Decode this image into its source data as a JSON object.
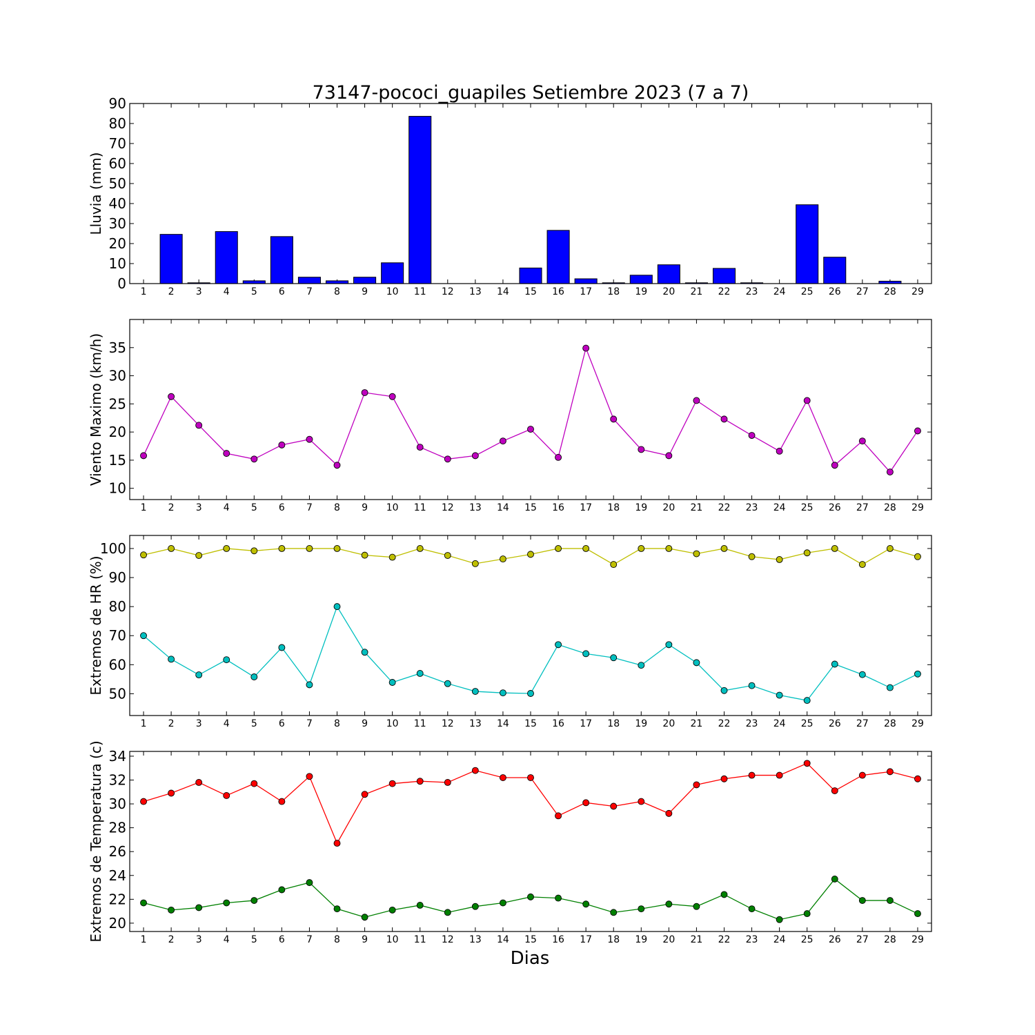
{
  "title": "73147-pococi_guapiles Setiembre 2023  (7 a 7)",
  "xlabel": "Dias",
  "chart_data": [
    {
      "type": "bar",
      "ylabel": "Lluvia (mm)",
      "x": [
        1,
        2,
        3,
        4,
        5,
        6,
        7,
        8,
        9,
        10,
        11,
        12,
        13,
        14,
        15,
        16,
        17,
        18,
        19,
        20,
        21,
        22,
        23,
        24,
        25,
        26,
        27,
        28,
        29
      ],
      "xlim": [
        0.5,
        29.5
      ],
      "ylim": [
        0,
        90
      ],
      "yticks": [
        0,
        10,
        20,
        30,
        40,
        50,
        60,
        70,
        80,
        90
      ],
      "series": [
        {
          "color": "#0000ff",
          "values": [
            0.0,
            24.6,
            0.4,
            26.0,
            1.4,
            23.5,
            3.2,
            1.4,
            3.2,
            10.4,
            83.6,
            0.0,
            0.0,
            0.0,
            7.8,
            26.6,
            2.4,
            0.4,
            4.2,
            9.4,
            0.4,
            7.6,
            0.4,
            0.0,
            39.4,
            13.2,
            0.0,
            1.2,
            0.0
          ]
        }
      ]
    },
    {
      "type": "line",
      "ylabel": "Viento Maximo (km/h)",
      "x": [
        1,
        2,
        3,
        4,
        5,
        6,
        7,
        8,
        9,
        10,
        11,
        12,
        13,
        14,
        15,
        16,
        17,
        18,
        19,
        20,
        21,
        22,
        23,
        24,
        25,
        26,
        27,
        28,
        29
      ],
      "xlim": [
        0.5,
        29.5
      ],
      "ylim": [
        8,
        40
      ],
      "yticks": [
        10,
        15,
        20,
        25,
        30,
        35
      ],
      "series": [
        {
          "color": "#bf00bf",
          "values": [
            15.8,
            26.3,
            21.2,
            16.2,
            15.2,
            17.7,
            18.7,
            14.1,
            27.0,
            26.3,
            17.3,
            15.2,
            15.8,
            18.4,
            20.5,
            15.5,
            34.9,
            22.3,
            16.9,
            15.8,
            25.6,
            22.3,
            19.4,
            16.6,
            25.6,
            14.1,
            18.4,
            12.9,
            20.2
          ]
        }
      ]
    },
    {
      "type": "line",
      "ylabel": "Extremos de HR (%)",
      "x": [
        1,
        2,
        3,
        4,
        5,
        6,
        7,
        8,
        9,
        10,
        11,
        12,
        13,
        14,
        15,
        16,
        17,
        18,
        19,
        20,
        21,
        22,
        23,
        24,
        25,
        26,
        27,
        28,
        29
      ],
      "xlim": [
        0.5,
        29.5
      ],
      "ylim": [
        42.5,
        104.5
      ],
      "yticks": [
        50,
        60,
        70,
        80,
        90,
        100
      ],
      "series": [
        {
          "color": "#bfbf00",
          "values": [
            97.8,
            100,
            97.6,
            100,
            99.2,
            100,
            100,
            100,
            97.7,
            97.0,
            100,
            97.6,
            94.8,
            96.4,
            98.0,
            100,
            100,
            94.5,
            100,
            100,
            98.2,
            100,
            97.2,
            96.2,
            98.5,
            100,
            94.5,
            100,
            97.2
          ]
        },
        {
          "color": "#00bfbf",
          "values": [
            70,
            61.9,
            56.5,
            61.7,
            55.8,
            65.9,
            53.1,
            80,
            64.3,
            53.9,
            57,
            53.5,
            50.8,
            50.3,
            50.1,
            66.9,
            63.8,
            62.4,
            59.8,
            66.9,
            60.7,
            51.1,
            52.8,
            49.5,
            47.7,
            60.2,
            56.6,
            52.1,
            56.8
          ]
        }
      ]
    },
    {
      "type": "line",
      "ylabel": "Extremos de Temperatura (c)",
      "x": [
        1,
        2,
        3,
        4,
        5,
        6,
        7,
        8,
        9,
        10,
        11,
        12,
        13,
        14,
        15,
        16,
        17,
        18,
        19,
        20,
        21,
        22,
        23,
        24,
        25,
        26,
        27,
        28,
        29
      ],
      "xlim": [
        0.5,
        29.5
      ],
      "ylim": [
        19.3,
        34.4
      ],
      "yticks": [
        20,
        22,
        24,
        26,
        28,
        30,
        32,
        34
      ],
      "series": [
        {
          "color": "#ff0000",
          "values": [
            30.2,
            30.9,
            31.8,
            30.7,
            31.7,
            30.2,
            32.3,
            26.7,
            30.8,
            31.7,
            31.9,
            31.8,
            32.8,
            32.2,
            32.2,
            29.0,
            30.1,
            29.8,
            30.2,
            29.2,
            31.6,
            32.1,
            32.4,
            32.4,
            33.4,
            31.1,
            32.4,
            32.7,
            32.1
          ]
        },
        {
          "color": "#008000",
          "values": [
            21.7,
            21.1,
            21.3,
            21.7,
            21.9,
            22.8,
            23.4,
            21.2,
            20.5,
            21.1,
            21.5,
            20.9,
            21.4,
            21.7,
            22.2,
            22.1,
            21.6,
            20.9,
            21.2,
            21.6,
            21.4,
            22.4,
            21.2,
            20.3,
            20.8,
            23.7,
            21.9,
            21.9,
            20.8
          ]
        }
      ]
    }
  ]
}
